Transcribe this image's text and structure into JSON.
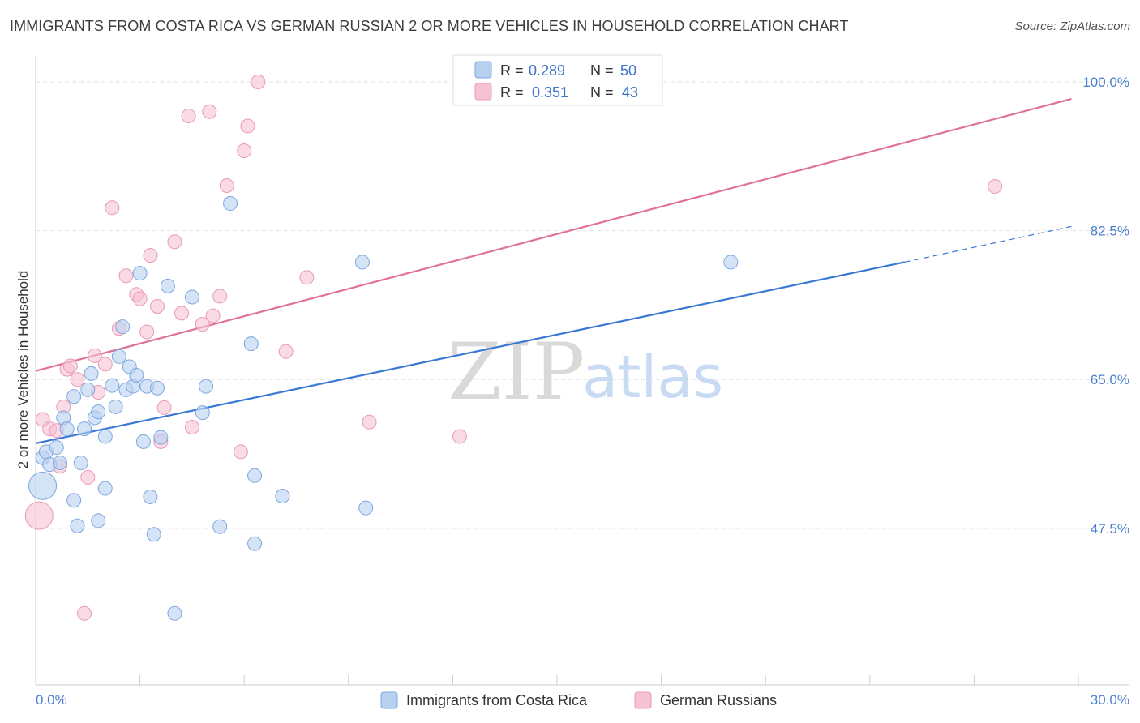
{
  "title": "IMMIGRANTS FROM COSTA RICA VS GERMAN RUSSIAN 2 OR MORE VEHICLES IN HOUSEHOLD CORRELATION CHART",
  "source": "Source: ZipAtlas.com",
  "watermark": {
    "zip": "ZIP",
    "atlas": "atlas"
  },
  "colors": {
    "blue": "#3a78d4",
    "blue_fill": "#b7d0f0",
    "pink": "#e0719a",
    "pink_fill": "#f5c2d3",
    "grid": "#e2e2e2",
    "tick_label": "#4a7fcf"
  },
  "chart_data": {
    "type": "scatter",
    "xlabel": "",
    "ylabel": "2 or more Vehicles in Household",
    "xlim": [
      0,
      30
    ],
    "ylim": [
      31,
      102
    ],
    "x_tick_labels": [
      "0.0%",
      "30.0%"
    ],
    "y_ticks": [
      47.5,
      65.0,
      82.5,
      100.0
    ],
    "y_tick_labels": [
      "47.5%",
      "65.0%",
      "82.5%",
      "100.0%"
    ],
    "grid": "horizontal dashed",
    "legend": {
      "position": "top-center",
      "rows": [
        {
          "r_label": "R =",
          "r": "0.289",
          "n_label": "N =",
          "n": "50"
        },
        {
          "r_label": "R =",
          "r": "0.351",
          "n_label": "N =",
          "n": "43"
        }
      ]
    },
    "series": [
      {
        "name": "Immigrants from Costa Rica",
        "color": "#3a78d4",
        "trend": {
          "x0": 0,
          "y0": 57.5,
          "x1": 25,
          "y1": 78.8,
          "dashed_to_x": 29.8,
          "dashed_to_y": 83.0
        },
        "points": [
          {
            "x": 0.2,
            "y": 52.5,
            "big": true
          },
          {
            "x": 0.2,
            "y": 55.8
          },
          {
            "x": 0.3,
            "y": 56.5
          },
          {
            "x": 0.4,
            "y": 55.0
          },
          {
            "x": 0.6,
            "y": 57.0
          },
          {
            "x": 0.7,
            "y": 55.2
          },
          {
            "x": 0.8,
            "y": 60.5
          },
          {
            "x": 0.9,
            "y": 59.2
          },
          {
            "x": 1.1,
            "y": 50.8
          },
          {
            "x": 1.1,
            "y": 63.0
          },
          {
            "x": 1.2,
            "y": 47.8
          },
          {
            "x": 1.3,
            "y": 55.2
          },
          {
            "x": 1.4,
            "y": 59.2
          },
          {
            "x": 1.5,
            "y": 63.8
          },
          {
            "x": 1.6,
            "y": 65.7
          },
          {
            "x": 1.7,
            "y": 60.5
          },
          {
            "x": 1.8,
            "y": 61.2
          },
          {
            "x": 1.8,
            "y": 48.4
          },
          {
            "x": 2.0,
            "y": 58.3
          },
          {
            "x": 2.0,
            "y": 52.2
          },
          {
            "x": 2.2,
            "y": 64.3
          },
          {
            "x": 2.3,
            "y": 61.8
          },
          {
            "x": 2.4,
            "y": 67.7
          },
          {
            "x": 2.5,
            "y": 71.2
          },
          {
            "x": 2.6,
            "y": 63.8
          },
          {
            "x": 2.7,
            "y": 66.5
          },
          {
            "x": 2.8,
            "y": 64.2
          },
          {
            "x": 2.9,
            "y": 65.5
          },
          {
            "x": 3.0,
            "y": 77.5
          },
          {
            "x": 3.1,
            "y": 57.7
          },
          {
            "x": 3.2,
            "y": 64.2
          },
          {
            "x": 3.3,
            "y": 51.2
          },
          {
            "x": 3.4,
            "y": 46.8
          },
          {
            "x": 3.5,
            "y": 64.0
          },
          {
            "x": 3.6,
            "y": 58.2
          },
          {
            "x": 3.8,
            "y": 76.0
          },
          {
            "x": 4.0,
            "y": 37.5
          },
          {
            "x": 4.5,
            "y": 74.7
          },
          {
            "x": 4.8,
            "y": 61.1
          },
          {
            "x": 4.9,
            "y": 64.2
          },
          {
            "x": 5.3,
            "y": 47.7
          },
          {
            "x": 5.6,
            "y": 85.7
          },
          {
            "x": 6.2,
            "y": 69.2
          },
          {
            "x": 6.3,
            "y": 53.7
          },
          {
            "x": 6.3,
            "y": 45.7
          },
          {
            "x": 7.1,
            "y": 51.3
          },
          {
            "x": 9.4,
            "y": 78.8
          },
          {
            "x": 9.5,
            "y": 49.9
          },
          {
            "x": 20.0,
            "y": 78.8
          }
        ]
      },
      {
        "name": "German Russians",
        "color": "#e0719a",
        "trend": {
          "x0": 0,
          "y0": 66.0,
          "x1": 29.8,
          "y1": 98.0
        },
        "points": [
          {
            "x": 0.1,
            "y": 49.0,
            "big": true
          },
          {
            "x": 0.2,
            "y": 60.3
          },
          {
            "x": 0.4,
            "y": 59.2
          },
          {
            "x": 0.6,
            "y": 59.0
          },
          {
            "x": 0.7,
            "y": 54.8
          },
          {
            "x": 0.8,
            "y": 61.8
          },
          {
            "x": 0.9,
            "y": 66.2
          },
          {
            "x": 1.0,
            "y": 66.6
          },
          {
            "x": 1.2,
            "y": 65.0
          },
          {
            "x": 1.4,
            "y": 37.5
          },
          {
            "x": 1.5,
            "y": 53.5
          },
          {
            "x": 1.7,
            "y": 67.8
          },
          {
            "x": 1.8,
            "y": 63.5
          },
          {
            "x": 2.0,
            "y": 66.8
          },
          {
            "x": 2.2,
            "y": 85.2
          },
          {
            "x": 2.4,
            "y": 71.0
          },
          {
            "x": 2.6,
            "y": 77.2
          },
          {
            "x": 2.9,
            "y": 75.0
          },
          {
            "x": 3.0,
            "y": 74.5
          },
          {
            "x": 3.2,
            "y": 70.6
          },
          {
            "x": 3.3,
            "y": 79.6
          },
          {
            "x": 3.5,
            "y": 73.6
          },
          {
            "x": 3.6,
            "y": 57.7
          },
          {
            "x": 3.7,
            "y": 61.7
          },
          {
            "x": 4.0,
            "y": 81.2
          },
          {
            "x": 4.2,
            "y": 72.8
          },
          {
            "x": 4.4,
            "y": 96.0
          },
          {
            "x": 4.5,
            "y": 59.4
          },
          {
            "x": 4.8,
            "y": 71.5
          },
          {
            "x": 5.0,
            "y": 96.5
          },
          {
            "x": 5.1,
            "y": 72.5
          },
          {
            "x": 5.3,
            "y": 74.8
          },
          {
            "x": 5.5,
            "y": 87.8
          },
          {
            "x": 5.9,
            "y": 56.5
          },
          {
            "x": 6.0,
            "y": 91.9
          },
          {
            "x": 6.1,
            "y": 94.8
          },
          {
            "x": 6.4,
            "y": 100.0
          },
          {
            "x": 7.2,
            "y": 68.3
          },
          {
            "x": 7.8,
            "y": 77.0
          },
          {
            "x": 9.6,
            "y": 60.0
          },
          {
            "x": 12.2,
            "y": 58.3
          },
          {
            "x": 27.6,
            "y": 87.7
          }
        ]
      }
    ]
  }
}
